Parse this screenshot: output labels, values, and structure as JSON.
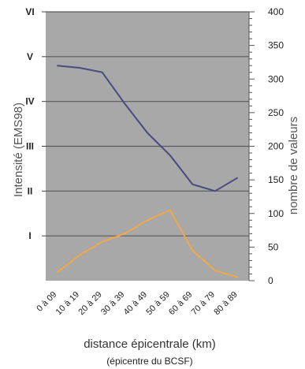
{
  "chart_data": {
    "type": "line",
    "x_categories": [
      "0 à 09",
      "10 à 19",
      "20 à 29",
      "30 à 39",
      "40 à 49",
      "50 à 59",
      "60 à 69",
      "70 à 79",
      "80 à 89"
    ],
    "left_axis": {
      "label": "Intensité (EMS98)",
      "tick_labels": [
        "I",
        "II",
        "III",
        "IV",
        "V",
        "VI"
      ],
      "ylim": [
        0,
        6
      ]
    },
    "right_axis": {
      "label": "nombre de valeurs",
      "ticks": [
        0,
        50,
        100,
        150,
        200,
        250,
        300,
        350,
        400
      ],
      "ylim": [
        0,
        400
      ]
    },
    "xlabel": "distance épicentrale (km)",
    "subtitle": "(épicentre du BCSF)",
    "grid": "horizontal on left-axis integer ticks",
    "background": "#a8a8a8",
    "series": [
      {
        "axis": "left",
        "color": "#4a4a80",
        "values": [
          4.8,
          4.75,
          4.65,
          3.95,
          3.3,
          2.8,
          2.15,
          2.0,
          2.3
        ]
      },
      {
        "axis": "right",
        "color": "#f0a848",
        "values": [
          12,
          38,
          58,
          70,
          90,
          105,
          45,
          15,
          5
        ]
      }
    ]
  }
}
